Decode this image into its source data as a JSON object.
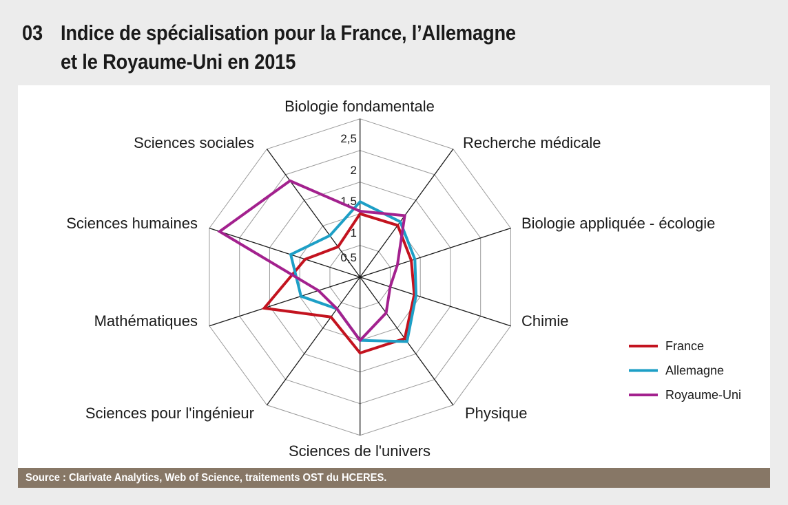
{
  "header": {
    "number": "03",
    "title_line1": "Indice de spécialisation pour la France, l’Allemagne",
    "title_line2": "et le Royaume-Uni en 2015"
  },
  "footer": {
    "source": "Source : Clarivate Analytics, Web of Science, traitements OST du HCERES."
  },
  "chart_data": {
    "type": "radar",
    "title": "Indice de spécialisation pour la France, l’Allemagne et le Royaume-Uni en 2015",
    "categories": [
      "Biologie fondamentale",
      "Recherche médicale",
      "Biologie appliquée - écologie",
      "Chimie",
      "Physique",
      "Sciences de l'univers",
      "Sciences pour l'ingénieur",
      "Mathématiques",
      "Sciences humaines",
      "Sciences sociales"
    ],
    "rlim": [
      0,
      2.5
    ],
    "ticks": [
      0.5,
      1,
      1.5,
      2,
      2.5
    ],
    "tick_labels": [
      "0,5",
      "1",
      "1,5",
      "2",
      "2,5"
    ],
    "legend_position": "right",
    "series": [
      {
        "name": "France",
        "color": "#c3131f",
        "values": [
          1.0,
          1.01,
          0.85,
          0.9,
          1.2,
          1.2,
          0.78,
          1.59,
          0.91,
          0.59
        ]
      },
      {
        "name": "Allemagne",
        "color": "#1d9fc6",
        "values": [
          1.19,
          1.08,
          0.91,
          0.93,
          1.26,
          1.0,
          0.62,
          0.98,
          1.15,
          0.81
        ]
      },
      {
        "name": "Royaume-Uni",
        "color": "#a3218e",
        "values": [
          1.04,
          1.2,
          0.62,
          0.5,
          0.7,
          1.0,
          0.62,
          0.69,
          2.33,
          1.88
        ]
      }
    ]
  }
}
